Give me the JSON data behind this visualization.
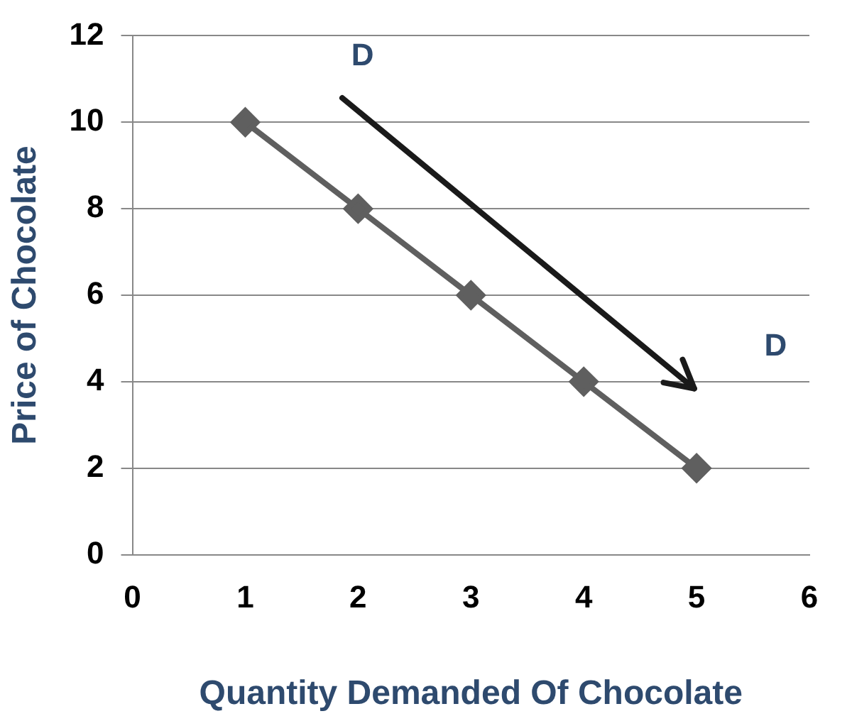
{
  "chart_data": {
    "type": "line",
    "xlabel": "Quantity Demanded Of Chocolate",
    "ylabel": "Price of Chocolate",
    "x": [
      1,
      2,
      3,
      4,
      5
    ],
    "series": [
      {
        "color": "#5f5f5f",
        "values": [
          10,
          8,
          6,
          4,
          2
        ]
      }
    ],
    "xlim": [
      0,
      6
    ],
    "xticks": [
      0,
      1,
      2,
      3,
      4,
      5,
      6
    ],
    "ylim": [
      0,
      12
    ],
    "yticks": [
      0,
      2,
      4,
      6,
      8,
      10,
      12
    ],
    "grid": "y",
    "legend": false,
    "marker": "diamond",
    "line_style": "solid",
    "annotations": [
      "D",
      "D"
    ]
  }
}
